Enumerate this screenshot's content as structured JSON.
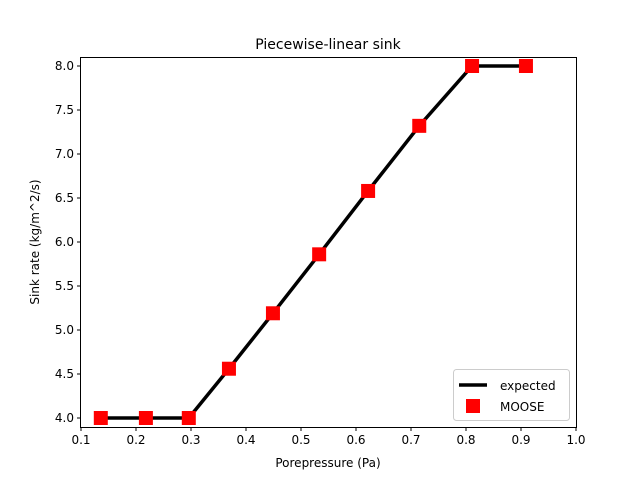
{
  "chart_data": {
    "type": "line",
    "title": "Piecewise-linear sink",
    "xlabel": "Porepressure (Pa)",
    "ylabel": "Sink rate (kg/m^2/s)",
    "xlim": [
      0.1,
      1.0
    ],
    "ylim": [
      3.9,
      8.09
    ],
    "xticks": [
      "0.1",
      "0.2",
      "0.3",
      "0.4",
      "0.5",
      "0.6",
      "0.7",
      "0.8",
      "0.9",
      "1.0"
    ],
    "yticks": [
      "4.0",
      "4.5",
      "5.0",
      "5.5",
      "6.0",
      "6.5",
      "7.0",
      "7.5",
      "8.0"
    ],
    "grid": false,
    "legend_position": "lower-right",
    "series": [
      {
        "name": "expected",
        "style": "line",
        "color": "#000000",
        "x": [
          0.136,
          0.218,
          0.296,
          0.369,
          0.449,
          0.533,
          0.622,
          0.715,
          0.811,
          0.909
        ],
        "y": [
          4.0,
          4.0,
          4.0,
          4.56,
          5.19,
          5.86,
          6.58,
          7.32,
          8.0,
          8.0
        ]
      },
      {
        "name": "MOOSE",
        "style": "square-markers",
        "color": "#ff0000",
        "x": [
          0.136,
          0.218,
          0.296,
          0.369,
          0.449,
          0.533,
          0.622,
          0.715,
          0.811,
          0.909
        ],
        "y": [
          4.0,
          4.0,
          4.0,
          4.56,
          5.19,
          5.86,
          6.58,
          7.32,
          8.0,
          8.0
        ]
      }
    ]
  }
}
